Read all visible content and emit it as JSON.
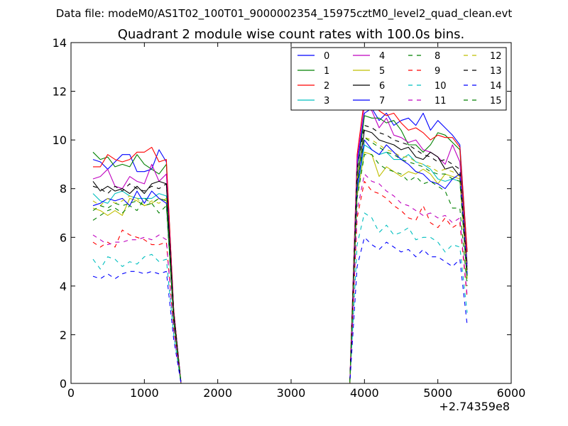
{
  "header": {
    "datafile": "Data file: modeM0/AS1T02_100T01_9000002354_15975cztM0_level2_quad_clean.evt"
  },
  "chart_data": {
    "type": "line",
    "title": "Quadrant 2 module wise count rates with 100.0s bins.",
    "xlabel": "",
    "ylabel": "",
    "x_offset_label": "+2.74359e8",
    "xlim": [
      0,
      6000
    ],
    "ylim": [
      0,
      14
    ],
    "xticks": [
      0,
      1000,
      2000,
      3000,
      4000,
      5000,
      6000
    ],
    "yticks": [
      0,
      2,
      4,
      6,
      8,
      10,
      12,
      14
    ],
    "legend_position": "top-right",
    "legend_columns": 4,
    "x": [
      300,
      400,
      500,
      600,
      700,
      800,
      900,
      1000,
      1100,
      1200,
      1300,
      1400,
      1500,
      1600,
      1700,
      1800,
      1900,
      2000,
      2100,
      2200,
      2300,
      2400,
      2500,
      2600,
      2700,
      2800,
      2900,
      3000,
      3100,
      3200,
      3300,
      3400,
      3500,
      3600,
      3700,
      3800,
      3900,
      4000,
      4100,
      4200,
      4300,
      4400,
      4500,
      4600,
      4700,
      4800,
      4900,
      5000,
      5100,
      5200,
      5300,
      5400
    ],
    "series": [
      {
        "name": "0",
        "color": "#0000ff",
        "dash": "solid",
        "values": [
          9.2,
          9.1,
          8.8,
          9.1,
          9.4,
          9.4,
          8.7,
          8.7,
          8.8,
          9.6,
          9.1,
          3.0,
          0,
          0,
          0,
          0,
          0,
          0,
          0,
          0,
          0,
          0,
          0,
          0,
          0,
          0,
          0,
          0,
          0,
          0,
          0,
          0,
          0,
          0,
          0,
          0,
          9.0,
          11.1,
          11.3,
          10.8,
          11.1,
          10.6,
          10.8,
          10.9,
          10.6,
          11.1,
          10.4,
          10.8,
          10.5,
          10.2,
          9.8,
          5.4
        ]
      },
      {
        "name": "1",
        "color": "#008000",
        "dash": "solid",
        "values": [
          9.5,
          9.2,
          9.3,
          8.9,
          9.0,
          8.9,
          9.4,
          9.0,
          8.8,
          8.6,
          9.0,
          3.0,
          0,
          0,
          0,
          0,
          0,
          0,
          0,
          0,
          0,
          0,
          0,
          0,
          0,
          0,
          0,
          0,
          0,
          0,
          0,
          0,
          0,
          0,
          0,
          0,
          8.6,
          11.0,
          10.9,
          10.9,
          10.7,
          10.8,
          10.4,
          9.8,
          9.8,
          9.5,
          9.8,
          10.3,
          10.2,
          9.9,
          9.6,
          4.9
        ]
      },
      {
        "name": "2",
        "color": "#ff0000",
        "dash": "solid",
        "values": [
          8.9,
          8.9,
          9.4,
          9.2,
          9.1,
          9.2,
          9.5,
          9.5,
          9.7,
          9.1,
          9.2,
          3.0,
          0,
          0,
          0,
          0,
          0,
          0,
          0,
          0,
          0,
          0,
          0,
          0,
          0,
          0,
          0,
          0,
          0,
          0,
          0,
          0,
          0,
          0,
          0,
          0,
          9.4,
          11.7,
          11.5,
          11.2,
          11.0,
          11.1,
          10.7,
          10.4,
          10.5,
          10.3,
          10.0,
          10.2,
          10.1,
          10.1,
          9.7,
          5.4
        ]
      },
      {
        "name": "3",
        "color": "#00bfbf",
        "dash": "solid",
        "values": [
          7.8,
          7.5,
          7.4,
          7.8,
          7.9,
          7.7,
          7.6,
          7.6,
          7.6,
          7.8,
          7.7,
          2.6,
          0,
          0,
          0,
          0,
          0,
          0,
          0,
          0,
          0,
          0,
          0,
          0,
          0,
          0,
          0,
          0,
          0,
          0,
          0,
          0,
          0,
          0,
          0,
          0,
          7.9,
          9.8,
          9.6,
          9.4,
          9.5,
          9.2,
          9.2,
          9.4,
          9.1,
          9.0,
          8.8,
          8.4,
          8.3,
          8.4,
          8.3,
          4.5
        ]
      },
      {
        "name": "4",
        "color": "#bf00bf",
        "dash": "solid",
        "values": [
          8.4,
          8.5,
          8.8,
          8.1,
          8.0,
          8.5,
          8.3,
          8.2,
          9.0,
          8.3,
          8.6,
          2.9,
          0,
          0,
          0,
          0,
          0,
          0,
          0,
          0,
          0,
          0,
          0,
          0,
          0,
          0,
          0,
          0,
          0,
          0,
          0,
          0,
          0,
          0,
          0,
          0,
          9.2,
          11.4,
          11.2,
          10.5,
          10.9,
          10.2,
          10.1,
          9.9,
          10.0,
          9.6,
          9.5,
          9.3,
          9.0,
          9.8,
          9.1,
          4.8
        ]
      },
      {
        "name": "5",
        "color": "#bfbf00",
        "dash": "solid",
        "values": [
          7.2,
          7.1,
          6.9,
          7.1,
          6.9,
          7.6,
          7.5,
          7.3,
          7.4,
          7.6,
          7.5,
          2.6,
          0,
          0,
          0,
          0,
          0,
          0,
          0,
          0,
          0,
          0,
          0,
          0,
          0,
          0,
          0,
          0,
          0,
          0,
          0,
          0,
          0,
          0,
          0,
          0,
          7.7,
          9.5,
          9.4,
          8.5,
          8.9,
          8.7,
          8.5,
          8.7,
          8.6,
          8.8,
          8.6,
          8.2,
          8.6,
          8.5,
          8.4,
          4.3
        ]
      },
      {
        "name": "6",
        "color": "#000000",
        "dash": "solid",
        "values": [
          8.3,
          7.9,
          8.1,
          7.9,
          8.0,
          7.8,
          8.1,
          7.8,
          8.2,
          8.3,
          8.2,
          2.8,
          0,
          0,
          0,
          0,
          0,
          0,
          0,
          0,
          0,
          0,
          0,
          0,
          0,
          0,
          0,
          0,
          0,
          0,
          0,
          0,
          0,
          0,
          0,
          0,
          8.3,
          10.4,
          10.3,
          10.0,
          9.9,
          9.8,
          9.6,
          9.7,
          9.3,
          9.2,
          9.5,
          9.3,
          8.8,
          8.9,
          8.5,
          4.4
        ]
      },
      {
        "name": "7",
        "color": "#0000ff",
        "dash": "solid",
        "values": [
          7.3,
          7.4,
          7.6,
          7.5,
          7.6,
          7.3,
          7.9,
          7.4,
          7.9,
          7.6,
          7.4,
          2.6,
          0,
          0,
          0,
          0,
          0,
          0,
          0,
          0,
          0,
          0,
          0,
          0,
          0,
          0,
          0,
          0,
          0,
          0,
          0,
          0,
          0,
          0,
          0,
          0,
          8.0,
          10.0,
          9.6,
          9.4,
          9.8,
          9.5,
          9.2,
          9.0,
          8.7,
          8.6,
          8.3,
          8.2,
          8.0,
          8.4,
          8.6,
          4.5
        ]
      },
      {
        "name": "8",
        "color": "#008000",
        "dash": "dashed",
        "values": [
          6.7,
          6.9,
          7.1,
          7.2,
          7.0,
          7.3,
          7.1,
          7.6,
          7.4,
          7.0,
          7.3,
          2.5,
          0,
          0,
          0,
          0,
          0,
          0,
          0,
          0,
          0,
          0,
          0,
          0,
          0,
          0,
          0,
          0,
          0,
          0,
          0,
          0,
          0,
          0,
          0,
          0,
          7.6,
          9.4,
          9.4,
          9.0,
          8.8,
          8.7,
          8.6,
          8.3,
          8.5,
          8.2,
          8.3,
          8.1,
          7.9,
          7.2,
          7.2,
          4.0
        ]
      },
      {
        "name": "9",
        "color": "#ff0000",
        "dash": "dashed",
        "values": [
          5.8,
          5.6,
          5.8,
          5.6,
          6.3,
          6.1,
          6.0,
          5.9,
          5.7,
          5.7,
          5.8,
          2.2,
          0,
          0,
          0,
          0,
          0,
          0,
          0,
          0,
          0,
          0,
          0,
          0,
          0,
          0,
          0,
          0,
          0,
          0,
          0,
          0,
          0,
          0,
          0,
          0,
          6.8,
          8.3,
          7.9,
          7.8,
          7.6,
          7.3,
          7.1,
          6.8,
          6.7,
          7.3,
          6.6,
          6.4,
          6.8,
          6.4,
          6.6,
          3.5
        ]
      },
      {
        "name": "10",
        "color": "#00bfbf",
        "dash": "dashed",
        "values": [
          5.1,
          4.7,
          5.2,
          5.1,
          4.8,
          5.0,
          4.9,
          5.2,
          5.3,
          5.0,
          5.1,
          2.0,
          0,
          0,
          0,
          0,
          0,
          0,
          0,
          0,
          0,
          0,
          0,
          0,
          0,
          0,
          0,
          0,
          0,
          0,
          0,
          0,
          0,
          0,
          0,
          0,
          5.7,
          7.0,
          6.8,
          6.2,
          6.5,
          6.1,
          6.2,
          6.4,
          5.9,
          6.0,
          6.0,
          5.8,
          5.4,
          5.7,
          5.6,
          2.9
        ]
      },
      {
        "name": "11",
        "color": "#bf00bf",
        "dash": "dashed",
        "values": [
          6.1,
          5.9,
          5.7,
          5.8,
          5.8,
          5.9,
          5.9,
          6.0,
          5.9,
          6.1,
          5.9,
          2.2,
          0,
          0,
          0,
          0,
          0,
          0,
          0,
          0,
          0,
          0,
          0,
          0,
          0,
          0,
          0,
          0,
          0,
          0,
          0,
          0,
          0,
          0,
          0,
          0,
          7.1,
          8.6,
          8.3,
          8.2,
          7.9,
          7.7,
          7.4,
          7.3,
          7.1,
          6.9,
          7.0,
          6.8,
          6.9,
          6.6,
          6.8,
          3.6
        ]
      },
      {
        "name": "12",
        "color": "#bfbf00",
        "dash": "dashed",
        "values": [
          7.5,
          7.3,
          7.6,
          7.4,
          7.5,
          7.7,
          7.6,
          7.3,
          7.5,
          7.4,
          7.6,
          2.6,
          0,
          0,
          0,
          0,
          0,
          0,
          0,
          0,
          0,
          0,
          0,
          0,
          0,
          0,
          0,
          0,
          0,
          0,
          0,
          0,
          0,
          0,
          0,
          0,
          8.4,
          10.1,
          10.0,
          9.8,
          9.6,
          9.5,
          9.3,
          9.3,
          9.1,
          9.0,
          8.9,
          8.7,
          8.8,
          8.7,
          8.5,
          4.4
        ]
      },
      {
        "name": "13",
        "color": "#000000",
        "dash": "dashed",
        "values": [
          8.1,
          8.0,
          7.8,
          8.1,
          7.9,
          8.2,
          8.0,
          7.9,
          8.1,
          8.0,
          8.2,
          2.8,
          0,
          0,
          0,
          0,
          0,
          0,
          0,
          0,
          0,
          0,
          0,
          0,
          0,
          0,
          0,
          0,
          0,
          0,
          0,
          0,
          0,
          0,
          0,
          0,
          8.8,
          10.6,
          10.5,
          10.3,
          10.2,
          10.0,
          9.9,
          9.8,
          9.6,
          9.4,
          9.3,
          9.1,
          9.2,
          9.0,
          8.8,
          4.6
        ]
      },
      {
        "name": "14",
        "color": "#0000ff",
        "dash": "dashed",
        "values": [
          4.4,
          4.3,
          4.5,
          4.3,
          4.5,
          4.6,
          4.6,
          4.5,
          4.6,
          4.5,
          4.6,
          1.8,
          0,
          0,
          0,
          0,
          0,
          0,
          0,
          0,
          0,
          0,
          0,
          0,
          0,
          0,
          0,
          0,
          0,
          0,
          0,
          0,
          0,
          0,
          0,
          0,
          4.8,
          6.0,
          5.7,
          5.5,
          5.8,
          5.6,
          5.4,
          5.5,
          5.2,
          5.5,
          5.2,
          5.2,
          5.0,
          4.8,
          5.1,
          2.4
        ]
      },
      {
        "name": "15",
        "color": "#008000",
        "dash": "dashed",
        "values": [
          7.1,
          7.3,
          7.2,
          7.4,
          7.3,
          7.4,
          7.5,
          7.3,
          7.4,
          7.6,
          7.5,
          2.6,
          0,
          0,
          0,
          0,
          0,
          0,
          0,
          0,
          0,
          0,
          0,
          0,
          0,
          0,
          0,
          0,
          0,
          0,
          0,
          0,
          0,
          0,
          0,
          0,
          8.2,
          10.1,
          9.9,
          9.7,
          9.5,
          9.4,
          9.2,
          9.1,
          9.0,
          8.9,
          8.7,
          8.6,
          8.6,
          8.4,
          8.3,
          4.2
        ]
      }
    ]
  }
}
